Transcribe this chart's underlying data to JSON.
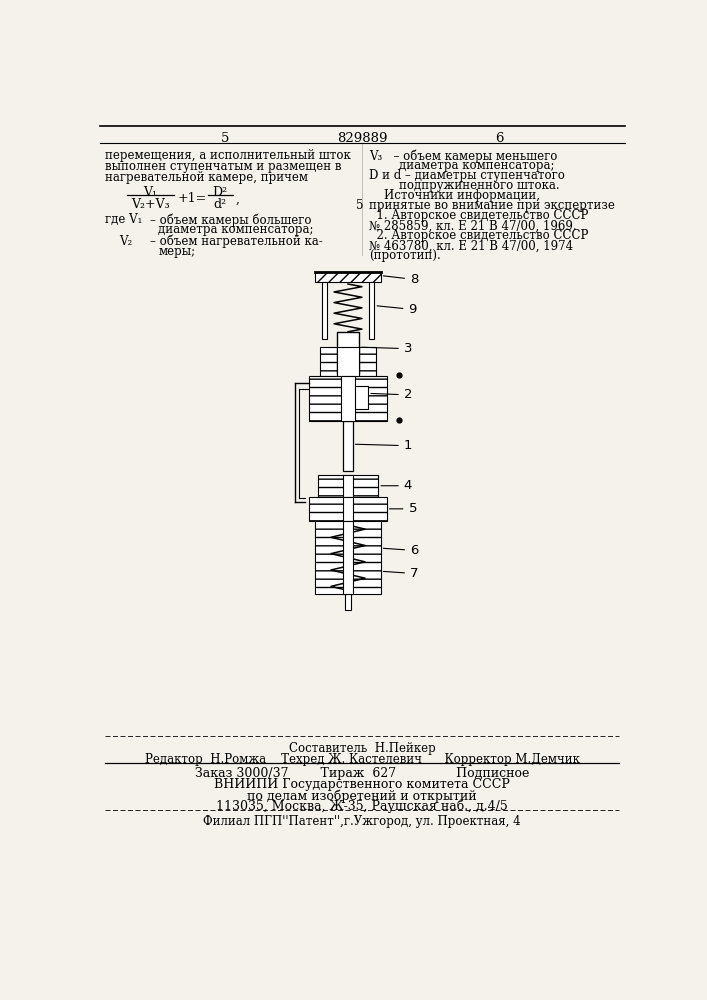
{
  "bg_color": "#f5f2ec",
  "page_number_left": "5",
  "page_number_center": "829889",
  "page_number_right": "6",
  "left_col_text": [
    "перемещения, а исполнительный шток",
    "выполнен ступенчатым и размещен в",
    "нагревательной камере, причем"
  ],
  "right_col_text": [
    "V₃   – объем камеры меньшего",
    "        диаметра компенсатора;",
    "D и d – диаметры ступенчатого",
    "        подпружиненного штока.",
    "    Источники информации,",
    "принятые во внимание при экспертизе",
    "  1. Авторское свидетельство СССР",
    "№ 285859, кл. Е 21 В 47/00, 1969.",
    "  2. Авторское свидетельство СССР",
    "№ 463780, кл. Е 21 В 47/00, 1974",
    "(прототип)."
  ],
  "footer_line1": "Составитель  Н.Пейкер",
  "footer_line2": "Редактор  Н.Ромжа    Техред Ж. Кастелевич      Корректор М.Демчик",
  "footer_line3": "Заказ 3000/37        Тираж  627               Подписное",
  "footer_line4": "ВНИИПИ Государственного комитета СССР",
  "footer_line5": "по делам изобретений и открытий",
  "footer_line6": "113035, Москва, Ж-35, Раушская наб., д.4/5",
  "footer_line7": "Филиал ПГП''Патент'',г.Ужгород, ул. Проектная, 4"
}
